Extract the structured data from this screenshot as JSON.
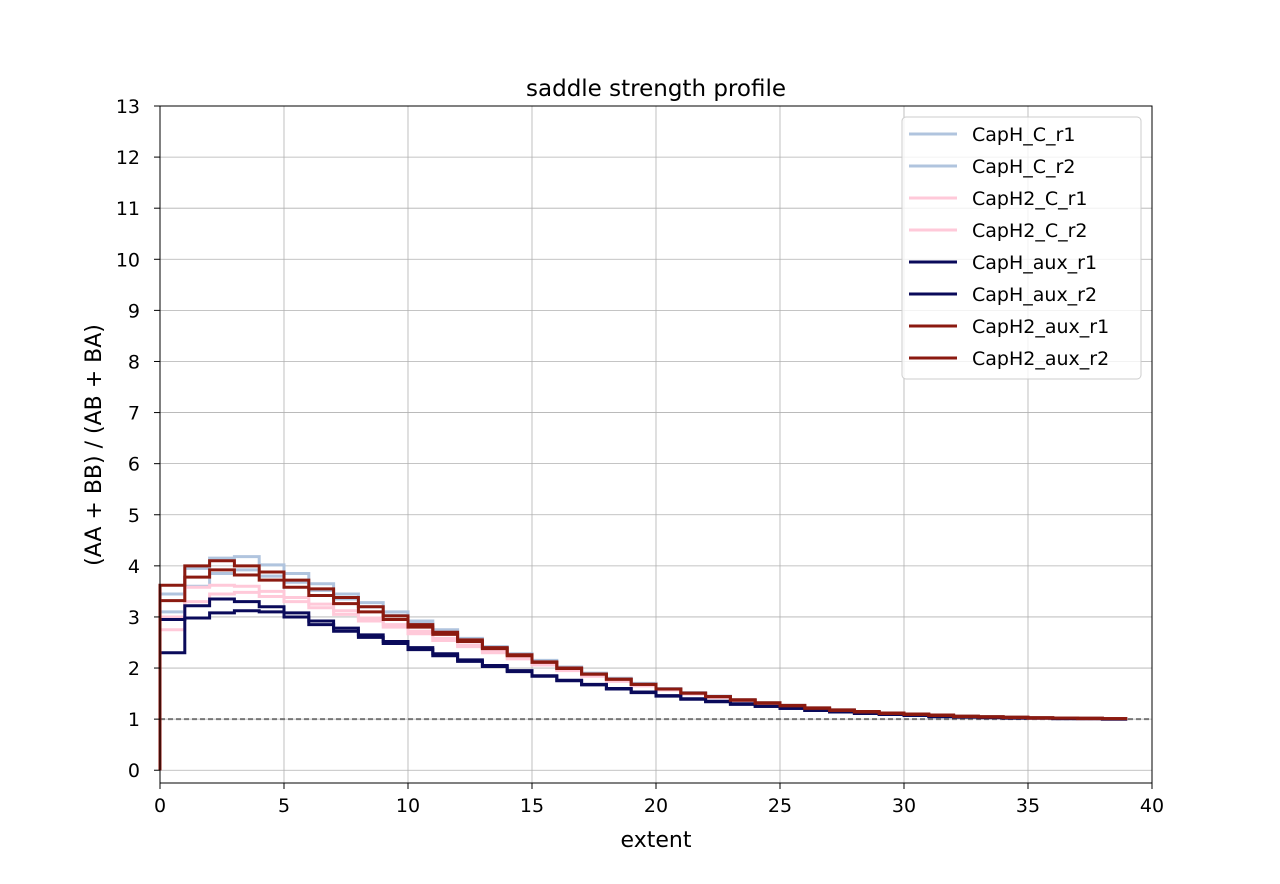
{
  "chart_data": {
    "type": "line",
    "step": true,
    "title": "saddle strength profile",
    "xlabel": "extent",
    "ylabel": "(AA + BB) / (AB + BA)",
    "xlim": [
      0,
      40
    ],
    "ylim": [
      -0.25,
      13.0
    ],
    "xticks": [
      0,
      5,
      10,
      15,
      20,
      25,
      30,
      35,
      40
    ],
    "yticks": [
      0,
      1,
      2,
      3,
      4,
      5,
      6,
      7,
      8,
      9,
      10,
      11,
      12,
      13
    ],
    "grid": true,
    "legend_position": "top-right",
    "reference_line": {
      "y": 1,
      "style": "dashed",
      "color": "#777777"
    },
    "series": [
      {
        "name": "CapH_C_r1",
        "color": "#b0c4de",
        "width": 3,
        "values": [
          3.45,
          3.95,
          4.15,
          4.18,
          4.02,
          3.85,
          3.65,
          3.45,
          3.28,
          3.1,
          2.92,
          2.75,
          2.58,
          2.42,
          2.28,
          2.15,
          2.02,
          1.9,
          1.8,
          1.7,
          1.6,
          1.52,
          1.45,
          1.38,
          1.32,
          1.27,
          1.22,
          1.18,
          1.15,
          1.12,
          1.1,
          1.08,
          1.06,
          1.05,
          1.04,
          1.03,
          1.02,
          1.02,
          1.01
        ]
      },
      {
        "name": "CapH_C_r2",
        "color": "#b0c4de",
        "width": 3,
        "values": [
          3.1,
          3.6,
          3.85,
          3.92,
          3.8,
          3.68,
          3.52,
          3.35,
          3.2,
          3.03,
          2.87,
          2.71,
          2.55,
          2.4,
          2.26,
          2.12,
          2.0,
          1.88,
          1.78,
          1.68,
          1.59,
          1.51,
          1.44,
          1.37,
          1.31,
          1.26,
          1.21,
          1.17,
          1.14,
          1.11,
          1.09,
          1.07,
          1.05,
          1.04,
          1.03,
          1.02,
          1.02,
          1.01,
          1.01
        ]
      },
      {
        "name": "CapH2_C_r1",
        "color": "#ffc9d9",
        "width": 3,
        "values": [
          3.0,
          3.58,
          3.62,
          3.6,
          3.5,
          3.38,
          3.25,
          3.12,
          2.98,
          2.85,
          2.72,
          2.58,
          2.45,
          2.33,
          2.2,
          2.08,
          1.97,
          1.86,
          1.76,
          1.67,
          1.58,
          1.5,
          1.43,
          1.37,
          1.31,
          1.26,
          1.21,
          1.17,
          1.14,
          1.11,
          1.09,
          1.07,
          1.05,
          1.04,
          1.03,
          1.02,
          1.02,
          1.01,
          1.01
        ]
      },
      {
        "name": "CapH2_C_r2",
        "color": "#ffc9d9",
        "width": 3,
        "values": [
          2.75,
          3.3,
          3.45,
          3.48,
          3.4,
          3.3,
          3.18,
          3.05,
          2.92,
          2.8,
          2.67,
          2.54,
          2.42,
          2.3,
          2.18,
          2.06,
          1.95,
          1.84,
          1.74,
          1.65,
          1.57,
          1.49,
          1.42,
          1.36,
          1.3,
          1.25,
          1.2,
          1.16,
          1.13,
          1.1,
          1.08,
          1.06,
          1.05,
          1.04,
          1.03,
          1.02,
          1.02,
          1.01,
          1.01
        ]
      },
      {
        "name": "CapH_aux_r1",
        "color": "#0a0a5a",
        "width": 3,
        "values": [
          2.95,
          3.22,
          3.35,
          3.3,
          3.2,
          3.08,
          2.92,
          2.78,
          2.65,
          2.52,
          2.4,
          2.28,
          2.16,
          2.05,
          1.95,
          1.85,
          1.76,
          1.68,
          1.6,
          1.53,
          1.46,
          1.4,
          1.35,
          1.3,
          1.25,
          1.21,
          1.17,
          1.14,
          1.11,
          1.09,
          1.07,
          1.05,
          1.04,
          1.03,
          1.02,
          1.02,
          1.01,
          1.01,
          1.0
        ]
      },
      {
        "name": "CapH_aux_r2",
        "color": "#0a0a5a",
        "width": 3,
        "values": [
          2.3,
          2.98,
          3.08,
          3.12,
          3.1,
          3.0,
          2.85,
          2.72,
          2.6,
          2.48,
          2.36,
          2.24,
          2.13,
          2.03,
          1.93,
          1.84,
          1.75,
          1.67,
          1.59,
          1.52,
          1.45,
          1.39,
          1.34,
          1.29,
          1.25,
          1.21,
          1.17,
          1.14,
          1.11,
          1.09,
          1.07,
          1.05,
          1.04,
          1.03,
          1.02,
          1.02,
          1.01,
          1.01,
          1.0
        ]
      },
      {
        "name": "CapH2_aux_r1",
        "color": "#8b1a10",
        "width": 3,
        "values": [
          3.62,
          4.0,
          4.1,
          4.0,
          3.88,
          3.72,
          3.55,
          3.38,
          3.2,
          3.02,
          2.85,
          2.7,
          2.55,
          2.4,
          2.26,
          2.12,
          2.0,
          1.88,
          1.78,
          1.68,
          1.59,
          1.51,
          1.44,
          1.38,
          1.32,
          1.27,
          1.22,
          1.18,
          1.15,
          1.12,
          1.1,
          1.08,
          1.06,
          1.05,
          1.04,
          1.03,
          1.02,
          1.02,
          1.01
        ]
      },
      {
        "name": "CapH2_aux_r2",
        "color": "#8b1a10",
        "width": 3,
        "values": [
          3.32,
          3.78,
          3.92,
          3.82,
          3.72,
          3.58,
          3.42,
          3.26,
          3.1,
          2.95,
          2.8,
          2.66,
          2.52,
          2.38,
          2.24,
          2.11,
          1.99,
          1.88,
          1.78,
          1.68,
          1.59,
          1.51,
          1.44,
          1.37,
          1.31,
          1.26,
          1.21,
          1.17,
          1.14,
          1.11,
          1.09,
          1.07,
          1.05,
          1.04,
          1.03,
          1.02,
          1.02,
          1.01,
          1.01
        ]
      }
    ]
  }
}
